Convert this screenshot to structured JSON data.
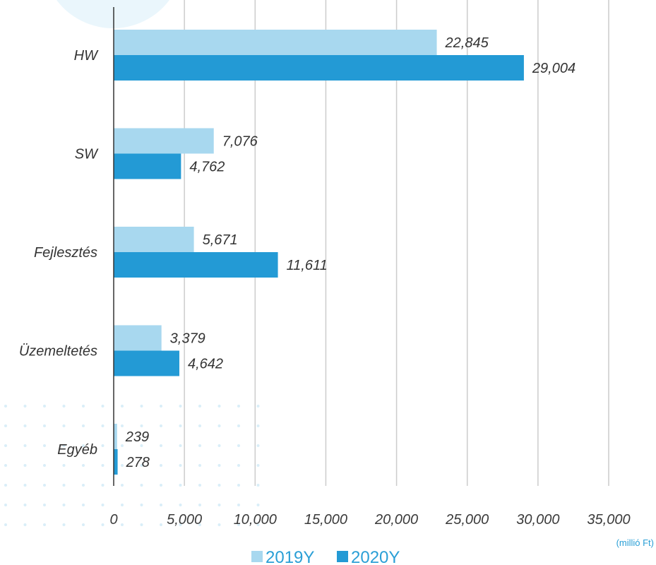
{
  "chart_data": {
    "type": "bar",
    "orientation": "horizontal",
    "categories": [
      "HW",
      "SW",
      "Fejlesztés",
      "Üzemeltetés",
      "Egyéb"
    ],
    "series": [
      {
        "name": "2019Y",
        "color": "#a8d8ef",
        "values": [
          22845,
          7076,
          5671,
          3379,
          239
        ]
      },
      {
        "name": "2020Y",
        "color": "#239ad5",
        "values": [
          29004,
          4762,
          11611,
          4642,
          278
        ]
      }
    ],
    "data_labels": [
      [
        "22,845",
        "7,076",
        "5,671",
        "3,379",
        "239"
      ],
      [
        "29,004",
        "4,762",
        "11,611",
        "4,642",
        "278"
      ]
    ],
    "xlim": [
      0,
      35000
    ],
    "xticks": [
      0,
      5000,
      10000,
      15000,
      20000,
      25000,
      30000,
      35000
    ],
    "xtick_labels": [
      "0",
      "5,000",
      "10,000",
      "15,000",
      "20,000",
      "25,000",
      "30,000",
      "35,000"
    ],
    "unit_label": "(millió Ft)",
    "grid": true,
    "legend_position": "bottom-center"
  }
}
